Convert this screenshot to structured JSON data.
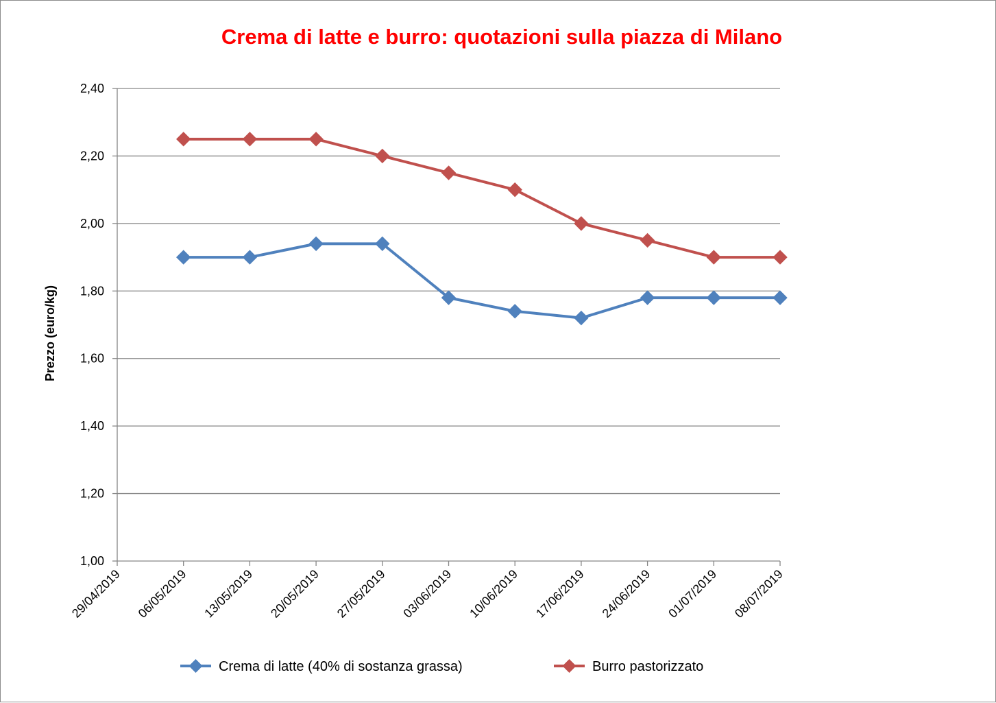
{
  "chart_data": {
    "type": "line",
    "title": "Crema di latte e burro: quotazioni sulla piazza di Milano",
    "xlabel": "",
    "ylabel": "Prezzo (euro/kg)",
    "categories": [
      "29/04/2019",
      "06/05/2019",
      "13/05/2019",
      "20/05/2019",
      "27/05/2019",
      "03/06/2019",
      "10/06/2019",
      "17/06/2019",
      "24/06/2019",
      "01/07/2019",
      "08/07/2019"
    ],
    "ylim": [
      1.0,
      2.4
    ],
    "yticks": [
      "1,00",
      "1,20",
      "1,40",
      "1,60",
      "1,80",
      "2,00",
      "2,20",
      "2,40"
    ],
    "grid": "horizontal",
    "legend_position": "bottom",
    "series": [
      {
        "name": "Crema di latte (40% di sostanza grassa)",
        "color": "#4f81bd",
        "marker": "diamond",
        "values": [
          null,
          1.9,
          1.9,
          1.94,
          1.94,
          1.78,
          1.74,
          1.72,
          1.78,
          1.78,
          1.78
        ]
      },
      {
        "name": "Burro pastorizzato",
        "color": "#c0504d",
        "marker": "diamond",
        "values": [
          null,
          2.25,
          2.25,
          2.25,
          2.2,
          2.15,
          2.1,
          2.0,
          1.95,
          1.9,
          1.9
        ]
      }
    ]
  }
}
